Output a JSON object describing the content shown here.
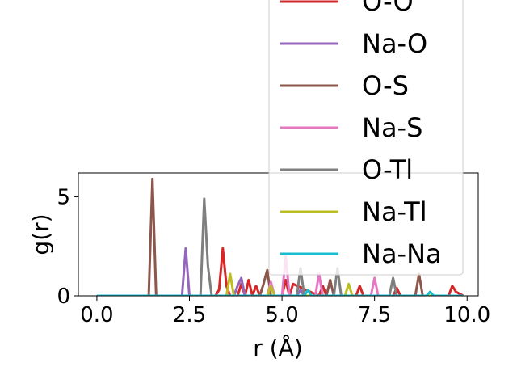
{
  "chart_data": {
    "type": "line",
    "xlabel": "r (Å)",
    "ylabel": "g(r)",
    "xlim": [
      -0.5,
      10.3
    ],
    "ylim": [
      0,
      6.2
    ],
    "xticks": [
      "0.0",
      "2.5",
      "5.0",
      "7.5",
      "10.0"
    ],
    "xtick_values": [
      0,
      2.5,
      5,
      7.5,
      10
    ],
    "yticks": [
      "0",
      "5"
    ],
    "ytick_values": [
      0,
      5
    ],
    "grid": false,
    "legend_position": "upper-right (overflowing above plot)",
    "series": [
      {
        "name": "O-O",
        "color": "#d62728",
        "x": [
          0,
          3.2,
          3.3,
          3.4,
          3.5,
          3.6,
          3.7,
          3.8,
          3.9,
          4.0,
          4.1,
          4.2,
          4.3,
          4.4,
          4.5,
          5.0,
          5.1,
          5.2,
          5.3,
          6.0,
          6.1,
          6.2,
          7.0,
          7.1,
          7.2,
          8.0,
          8.1,
          8.2,
          9.5,
          9.6,
          9.7,
          9.9
        ],
        "y": [
          0,
          0,
          0.3,
          2.4,
          0.5,
          0,
          0,
          0,
          0.6,
          0,
          0.8,
          0,
          0.5,
          0,
          0,
          0,
          0.8,
          0,
          0.6,
          0,
          0.5,
          0,
          0,
          0.5,
          0,
          0,
          0.4,
          0,
          0,
          0.5,
          0.2,
          0
        ]
      },
      {
        "name": "Na-O",
        "color": "#9467bd",
        "x": [
          0,
          2.3,
          2.4,
          2.5,
          3.7,
          3.8,
          3.9,
          4.0,
          5.4,
          5.5,
          5.6,
          9.9
        ],
        "y": [
          0,
          0,
          2.4,
          0,
          0,
          0.5,
          0.9,
          0,
          0,
          0.3,
          0,
          0
        ]
      },
      {
        "name": "O-S",
        "color": "#8c564b",
        "x": [
          0,
          1.4,
          1.5,
          1.6,
          4.4,
          4.5,
          4.6,
          4.7,
          6.2,
          6.3,
          6.4,
          8.6,
          8.7,
          8.8,
          9.9
        ],
        "y": [
          0,
          0,
          5.9,
          0,
          0,
          0.6,
          1.3,
          0,
          0,
          0.8,
          0,
          0,
          1.1,
          0,
          0
        ]
      },
      {
        "name": "Na-S",
        "color": "#e377c2",
        "x": [
          0,
          4.6,
          4.7,
          4.8,
          5.0,
          5.1,
          5.2,
          5.9,
          6.0,
          6.1,
          7.4,
          7.5,
          7.6,
          9.9
        ],
        "y": [
          0,
          0,
          0.7,
          0,
          0,
          2.0,
          0,
          0,
          1.1,
          0,
          0,
          0.9,
          0,
          0
        ]
      },
      {
        "name": "O-Tl",
        "color": "#7f7f7f",
        "x": [
          0,
          2.8,
          2.9,
          3.0,
          3.1,
          3.2,
          5.4,
          5.5,
          5.6,
          6.4,
          6.5,
          6.6,
          7.9,
          8.0,
          8.1,
          9.9
        ],
        "y": [
          0,
          0,
          4.9,
          1.5,
          0,
          0,
          0,
          1.4,
          0,
          0,
          1.4,
          0,
          0,
          0.9,
          0,
          0
        ]
      },
      {
        "name": "Na-Tl",
        "color": "#bcbd22",
        "x": [
          0,
          3.5,
          3.6,
          3.7,
          4.6,
          4.7,
          4.8,
          6.7,
          6.8,
          6.9,
          9.9
        ],
        "y": [
          0,
          0,
          1.1,
          0,
          0,
          0.5,
          0,
          0,
          0.6,
          0,
          0
        ]
      },
      {
        "name": "Na-Na",
        "color": "#17becf",
        "x": [
          0,
          5.6,
          5.7,
          5.8,
          8.9,
          9.0,
          9.1,
          9.9
        ],
        "y": [
          0,
          0,
          0.3,
          0,
          0,
          0.2,
          0,
          0
        ]
      }
    ]
  }
}
